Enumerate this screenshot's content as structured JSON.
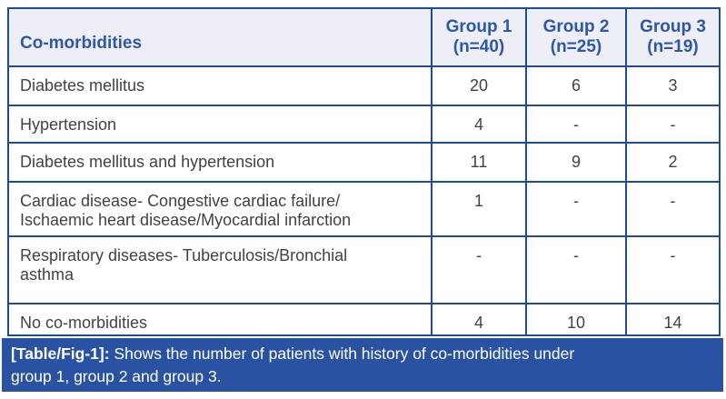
{
  "table": {
    "header": {
      "label": "Co-morbidities",
      "columns": [
        "Group 1\n(n=40)",
        "Group 2\n(n=25)",
        "Group 3\n(n=19)"
      ]
    },
    "rows": [
      {
        "label": "Diabetes mellitus",
        "values": [
          "20",
          "6",
          "3"
        ]
      },
      {
        "label": "Hypertension",
        "values": [
          "4",
          "-",
          "-"
        ]
      },
      {
        "label": "Diabetes mellitus and hypertension",
        "values": [
          "11",
          "9",
          "2"
        ]
      },
      {
        "label": "Cardiac disease- Congestive cardiac failure/\nIschaemic heart disease/Myocardial infarction",
        "values": [
          "1",
          "-",
          "-"
        ]
      },
      {
        "label": "Respiratory diseases- Tuberculosis/Bronchial\nasthma",
        "values": [
          "-",
          "-",
          "-"
        ]
      },
      {
        "label": "No co-morbidities",
        "values": [
          "4",
          "10",
          "14"
        ]
      }
    ]
  },
  "caption": {
    "tag": "[Table/Fig-1]:",
    "text": " Shows the number of patients with history of co-morbidities under\ngroup 1, group 2 and group 3."
  },
  "colors": {
    "border_blue": "#1f4c97",
    "caption_blue": "#2a52a2",
    "header_bg": "#edeef6",
    "header_text": "#2d57a7",
    "body_text": "#404248"
  }
}
